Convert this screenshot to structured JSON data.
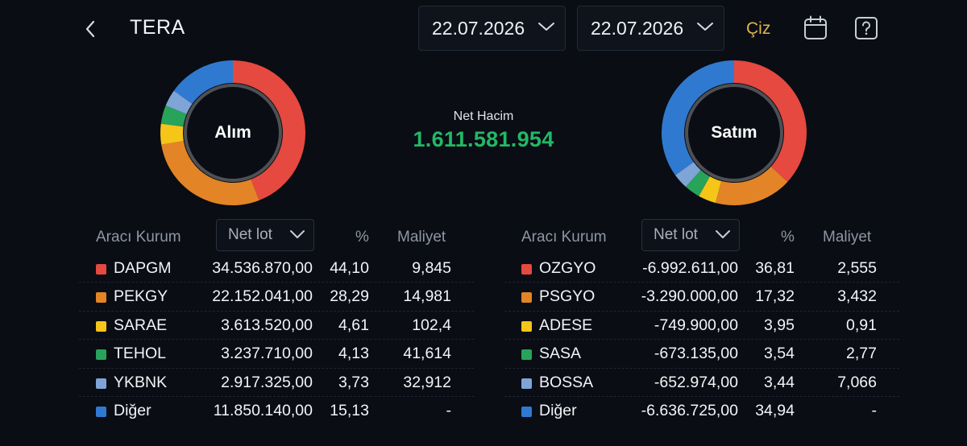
{
  "header": {
    "title": "TERA",
    "start_date": "22.07.2026",
    "end_date": "22.07.2026",
    "draw_label": "Çiz"
  },
  "icons": {
    "back": "chevron-left-icon",
    "calendar": "calendar-icon",
    "help": "help-icon"
  },
  "summary": {
    "net_label": "Net Hacim",
    "net_value": "1.611.581.954",
    "buy_label": "Alım",
    "sell_label": "Satım"
  },
  "colors": {
    "red": "#e5493f",
    "orange": "#e38426",
    "yellow": "#f5c518",
    "green": "#27a35a",
    "lightblue": "#7fa4d6",
    "blue": "#2f7ad0",
    "positive": "#22b866",
    "accent": "#e0b54a"
  },
  "table_headers": {
    "broker": "Aracı Kurum",
    "metric": "Net lot",
    "percent": "%",
    "cost": "Maliyet"
  },
  "buy": {
    "rows": [
      {
        "name": "DAPGM",
        "lot": "34.536.870,00",
        "pct": "44,10",
        "cost": "9,845",
        "color": "#e5493f"
      },
      {
        "name": "PEKGY",
        "lot": "22.152.041,00",
        "pct": "28,29",
        "cost": "14,981",
        "color": "#e38426"
      },
      {
        "name": "SARAE",
        "lot": "3.613.520,00",
        "pct": "4,61",
        "cost": "102,4",
        "color": "#f5c518"
      },
      {
        "name": "TEHOL",
        "lot": "3.237.710,00",
        "pct": "4,13",
        "cost": "41,614",
        "color": "#27a35a"
      },
      {
        "name": "YKBNK",
        "lot": "2.917.325,00",
        "pct": "3,73",
        "cost": "32,912",
        "color": "#7fa4d6"
      },
      {
        "name": "Diğer",
        "lot": "11.850.140,00",
        "pct": "15,13",
        "cost": "-",
        "color": "#2f7ad0"
      }
    ],
    "chart_shares": [
      44.1,
      28.29,
      4.61,
      4.13,
      3.73,
      15.13
    ]
  },
  "sell": {
    "rows": [
      {
        "name": "OZGYO",
        "lot": "-6.992.611,00",
        "pct": "36,81",
        "cost": "2,555",
        "color": "#e5493f"
      },
      {
        "name": "PSGYO",
        "lot": "-3.290.000,00",
        "pct": "17,32",
        "cost": "3,432",
        "color": "#e38426"
      },
      {
        "name": "ADESE",
        "lot": "-749.900,00",
        "pct": "3,95",
        "cost": "0,91",
        "color": "#f5c518"
      },
      {
        "name": "SASA",
        "lot": "-673.135,00",
        "pct": "3,54",
        "cost": "2,77",
        "color": "#27a35a"
      },
      {
        "name": "BOSSA",
        "lot": "-652.974,00",
        "pct": "3,44",
        "cost": "7,066",
        "color": "#7fa4d6"
      },
      {
        "name": "Diğer",
        "lot": "-6.636.725,00",
        "pct": "34,94",
        "cost": "-",
        "color": "#2f7ad0"
      }
    ],
    "chart_shares": [
      36.81,
      17.32,
      3.95,
      3.54,
      3.44,
      34.94
    ]
  }
}
